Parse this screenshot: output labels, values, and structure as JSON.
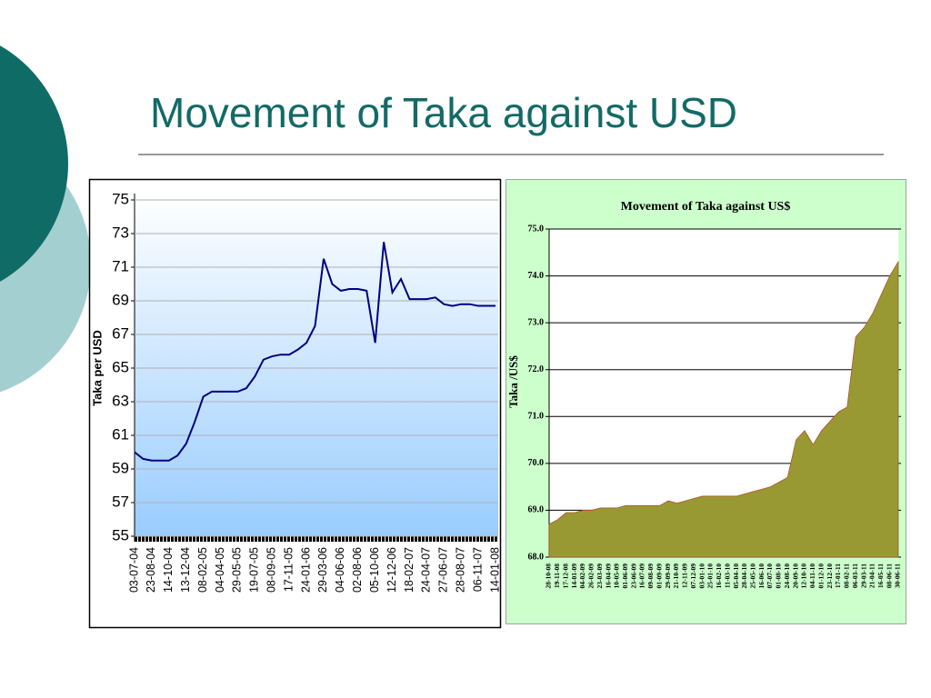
{
  "slide": {
    "title": "Movement of Taka against USD"
  },
  "chart_data": [
    {
      "type": "line",
      "ylabel": "Taka per USD",
      "color": "#000080",
      "grid": true,
      "categories": [
        "03-07-04",
        null,
        "23-08-04",
        null,
        "14-10-04",
        null,
        "13-12-04",
        null,
        "08-02-05",
        null,
        "04-04-05",
        null,
        "29-05-05",
        null,
        "19-07-05",
        null,
        "08-09-05",
        null,
        "17-11-05",
        null,
        "24-01-06",
        null,
        "29-03-06",
        null,
        "04-06-06",
        null,
        "02-08-06",
        null,
        "05-10-06",
        null,
        "12-12-06",
        null,
        "18-02-07",
        null,
        "24-04-07",
        null,
        "27-06-07",
        null,
        "28-08-07",
        null,
        "06-11-07",
        null,
        "14-01-08"
      ],
      "values": [
        60.0,
        59.6,
        59.5,
        59.5,
        59.5,
        59.8,
        60.5,
        61.8,
        63.3,
        63.6,
        63.6,
        63.6,
        63.6,
        63.8,
        64.5,
        65.5,
        65.7,
        65.8,
        65.8,
        66.1,
        66.5,
        67.5,
        71.5,
        70.0,
        69.6,
        69.7,
        69.7,
        69.6,
        66.5,
        72.5,
        69.5,
        70.3,
        69.1,
        69.1,
        69.1,
        69.2,
        68.8,
        68.7,
        68.8,
        68.8,
        68.7,
        68.7,
        68.7
      ],
      "ylim": [
        55,
        75
      ],
      "yticks": [
        55,
        57,
        59,
        61,
        63,
        65,
        67,
        69,
        71,
        73,
        75
      ]
    },
    {
      "type": "area",
      "title": "Movement of Taka against US$",
      "ylabel": "Taka /US$",
      "color": "#999933",
      "grid": true,
      "categories": [
        "28-10-08",
        "19-11-08",
        "17-12-08",
        "14-01-09",
        "04-02-09",
        "26-02-09",
        "23-03-09",
        "16-04-09",
        "10-05-09",
        "01-06-09",
        "23-06-09",
        "16-07-09",
        "09-08-09",
        "01-09-09",
        "29-09-09",
        "21-10-09",
        "12-11-09",
        "07-12-09",
        "03-01-10",
        "25-01-10",
        "16-02-10",
        "11-03-10",
        "05-04-10",
        "28-04-10",
        "25-05-10",
        "16-06-10",
        "07-07-10",
        "01-08-10",
        "24-08-10",
        "20-09-10",
        "12-10-10",
        "04-11-10",
        "01-12-10",
        "23-12-10",
        "17-01-11",
        "08-02-11",
        "06-03-11",
        "29-03-11",
        "21-04-11",
        "16-05-11",
        "08-06-11",
        "30-06-11"
      ],
      "values": [
        68.7,
        68.8,
        68.95,
        68.95,
        69.0,
        69.0,
        69.05,
        69.05,
        69.05,
        69.1,
        69.1,
        69.1,
        69.1,
        69.1,
        69.2,
        69.15,
        69.2,
        69.25,
        69.3,
        69.3,
        69.3,
        69.3,
        69.3,
        69.35,
        69.4,
        69.45,
        69.5,
        69.6,
        69.7,
        70.5,
        70.7,
        70.4,
        70.7,
        70.9,
        71.1,
        71.2,
        72.7,
        72.9,
        73.2,
        73.6,
        74.0,
        74.3
      ],
      "ylim": [
        68,
        75
      ],
      "yticks": [
        {
          "value": 68,
          "label": "68.0"
        },
        {
          "value": 69,
          "label": "69.0"
        },
        {
          "value": 70,
          "label": "70.0"
        },
        {
          "value": 71,
          "label": "71.0"
        },
        {
          "value": 72,
          "label": "72.0"
        },
        {
          "value": 73,
          "label": "73.0"
        },
        {
          "value": 74,
          "label": "74.0"
        },
        {
          "value": 75,
          "label": "75.0"
        }
      ]
    }
  ]
}
